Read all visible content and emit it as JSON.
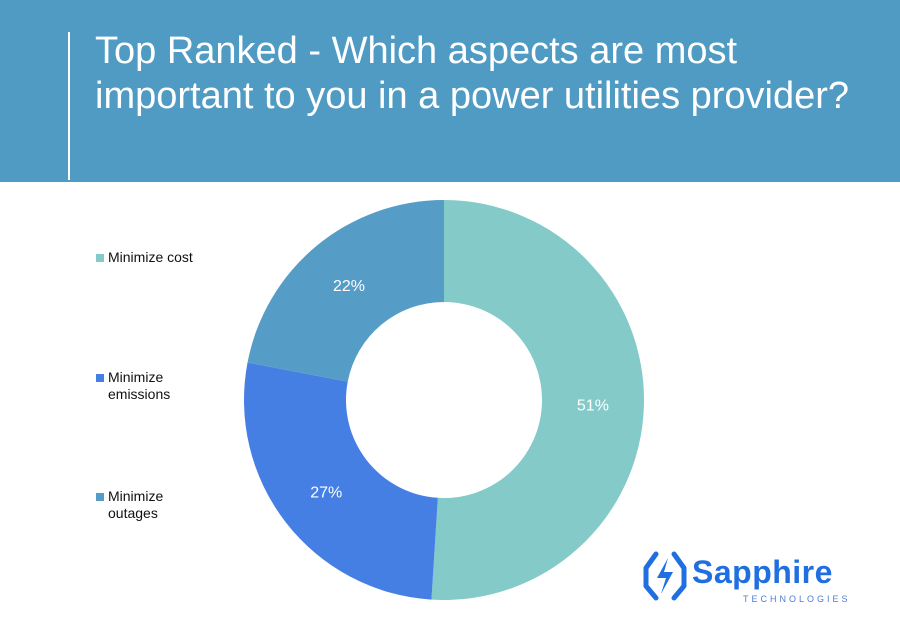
{
  "header": {
    "title": "Top Ranked - Which aspects are most important to you in a power utilities provider?"
  },
  "legend": [
    {
      "label": "Minimize cost",
      "color": "#83cac9"
    },
    {
      "label": "Minimize emissions",
      "color": "#457fe3"
    },
    {
      "label": "Minimize outages",
      "color": "#559cc6"
    }
  ],
  "chart_data": {
    "type": "pie",
    "donut": true,
    "title": "Top Ranked - Which aspects are most important to you in a power utilities provider?",
    "legend_position": "left",
    "categories": [
      "Minimize cost",
      "Minimize emissions",
      "Minimize outages"
    ],
    "values": [
      51,
      27,
      22
    ],
    "labels": [
      "51%",
      "27%",
      "22%"
    ],
    "colors": [
      "#83cac9",
      "#457fe3",
      "#559cc6"
    ]
  },
  "logo": {
    "name": "Sapphire",
    "tagline": "TECHNOLOGIES",
    "icon": "sapphire-bolt-icon",
    "color": "#1f6fe0"
  }
}
